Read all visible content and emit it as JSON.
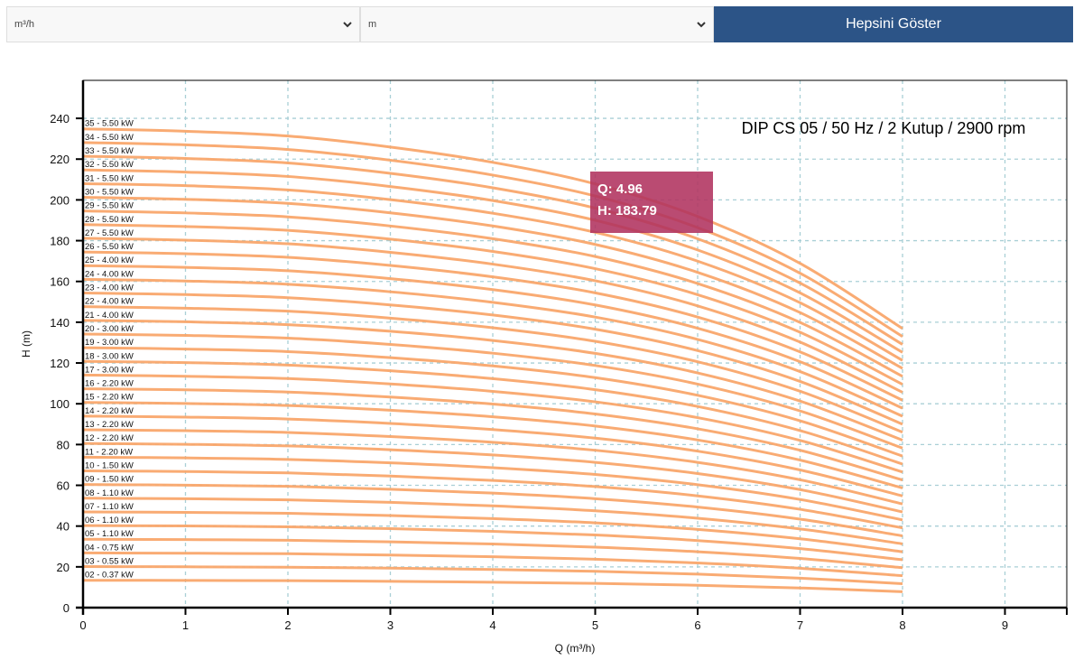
{
  "toolbar": {
    "flow_unit_select": {
      "selected": "m³/h"
    },
    "head_unit_select": {
      "selected": "m"
    },
    "show_all_button": {
      "label": "Hepsini Göster"
    }
  },
  "colors": {
    "curve": "#f9a66c",
    "grid": "#a9cfd6",
    "axis": "#000000",
    "tooltip_bg": "#b0325f",
    "button_bg": "#2c5487"
  },
  "tooltip": {
    "q_label": "Q: 4.96",
    "h_label": "H: 183.79"
  },
  "chart_data": {
    "type": "line",
    "title": "DIP CS 05 / 50 Hz / 2 Kutup / 2900 rpm",
    "xlabel": "Q (m³/h)",
    "ylabel": "H (m)",
    "xlim": [
      0,
      9.6
    ],
    "ylim": [
      0,
      257
    ],
    "x_ticks": [
      0,
      1,
      2,
      3,
      4,
      5,
      6,
      7,
      8,
      9
    ],
    "y_ticks": [
      0,
      20,
      40,
      60,
      80,
      100,
      120,
      140,
      160,
      180,
      200,
      220,
      240
    ],
    "grid": true,
    "x": [
      0,
      1,
      2,
      3,
      4,
      5,
      6,
      7,
      8
    ],
    "head_per_stage_at_shutoff": 6.71,
    "normalized_curve": [
      1.0,
      0.995,
      0.985,
      0.962,
      0.93,
      0.885,
      0.817,
      0.719,
      0.583
    ],
    "series": [
      {
        "name": "02 - 0.37 kW",
        "stages": 2
      },
      {
        "name": "03 - 0.55 kW",
        "stages": 3
      },
      {
        "name": "04 - 0.75 kW",
        "stages": 4
      },
      {
        "name": "05 - 1.10 kW",
        "stages": 5
      },
      {
        "name": "06 - 1.10 kW",
        "stages": 6
      },
      {
        "name": "07 - 1.10 kW",
        "stages": 7
      },
      {
        "name": "08 - 1.10 kW",
        "stages": 8
      },
      {
        "name": "09 - 1.50 kW",
        "stages": 9
      },
      {
        "name": "10 - 1.50 kW",
        "stages": 10
      },
      {
        "name": "11 - 2.20 kW",
        "stages": 11
      },
      {
        "name": "12 - 2.20 kW",
        "stages": 12
      },
      {
        "name": "13 - 2.20 kW",
        "stages": 13
      },
      {
        "name": "14 - 2.20 kW",
        "stages": 14
      },
      {
        "name": "15 - 2.20 kW",
        "stages": 15
      },
      {
        "name": "16 - 2.20 kW",
        "stages": 16
      },
      {
        "name": "17 - 3.00 kW",
        "stages": 17
      },
      {
        "name": "18 - 3.00 kW",
        "stages": 18
      },
      {
        "name": "19 - 3.00 kW",
        "stages": 19
      },
      {
        "name": "20 - 3.00 kW",
        "stages": 20
      },
      {
        "name": "21 - 4.00 kW",
        "stages": 21
      },
      {
        "name": "22 - 4.00 kW",
        "stages": 22
      },
      {
        "name": "23 - 4.00 kW",
        "stages": 23
      },
      {
        "name": "24 - 4.00 kW",
        "stages": 24
      },
      {
        "name": "25 - 4.00 kW",
        "stages": 25
      },
      {
        "name": "26 - 5.50 kW",
        "stages": 26
      },
      {
        "name": "27 - 5.50 kW",
        "stages": 27
      },
      {
        "name": "28 - 5.50 kW",
        "stages": 28
      },
      {
        "name": "29 - 5.50 kW",
        "stages": 29
      },
      {
        "name": "30 - 5.50 kW",
        "stages": 30
      },
      {
        "name": "31 - 5.50 kW",
        "stages": 31
      },
      {
        "name": "32 - 5.50 kW",
        "stages": 32
      },
      {
        "name": "33 - 5.50 kW",
        "stages": 33
      },
      {
        "name": "34 - 5.50 kW",
        "stages": 34
      },
      {
        "name": "35 - 5.50 kW",
        "stages": 35
      }
    ],
    "approx_values_at_x": {
      "35 - 5.50 kW": [
        235,
        234,
        231,
        226,
        219,
        208,
        192,
        169,
        137
      ],
      "02 - 0.37 kW": [
        13.4,
        13.4,
        13.2,
        12.9,
        12.5,
        11.9,
        11.0,
        9.6,
        7.8
      ]
    },
    "annotations": [
      {
        "type": "tooltip",
        "text": [
          "Q: 4.96",
          "H: 183.79"
        ]
      }
    ]
  }
}
